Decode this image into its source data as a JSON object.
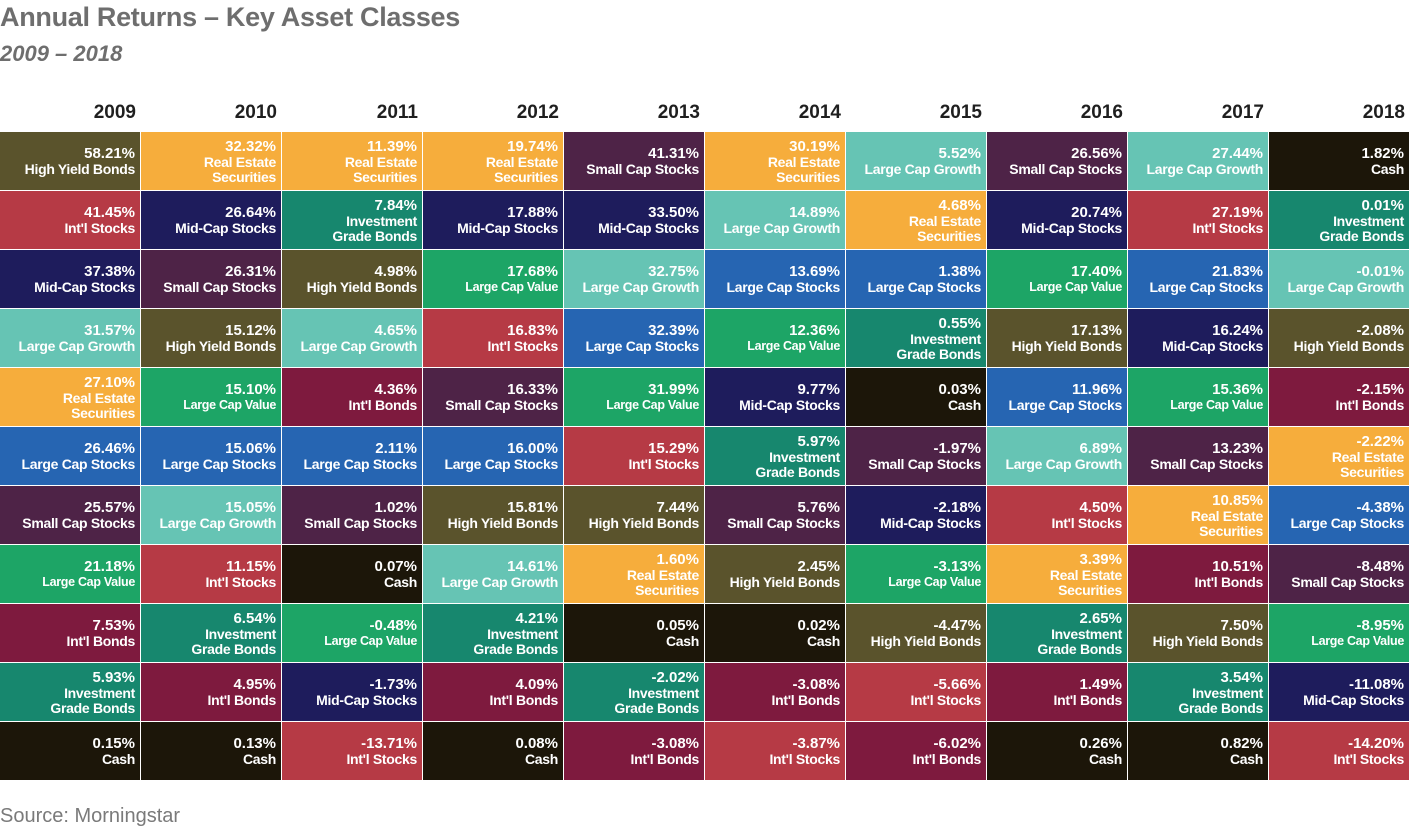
{
  "title": "Annual Returns – Key Asset Classes",
  "subtitle": "2009 – 2018",
  "source": "Source: Morningstar",
  "asset_colors": {
    "High Yield Bonds": "#5a532c",
    "Real Estate Securities": "#f6ad3c",
    "Small Cap Stocks": "#4e2347",
    "Large Cap Growth": "#66c4b4",
    "Cash": "#1c1609",
    "Int'l Stocks": "#b63a45",
    "Mid-Cap Stocks": "#1e1c5c",
    "Investment Grade Bonds": "#17876e",
    "Large Cap Stocks": "#2665b2",
    "Large Cap Value": "#1da566",
    "Int'l Bonds": "#7e1a3e"
  },
  "chart_data": {
    "type": "table",
    "title": "Annual Returns – Key Asset Classes",
    "subtitle": "2009 – 2018",
    "years": [
      "2009",
      "2010",
      "2011",
      "2012",
      "2013",
      "2014",
      "2015",
      "2016",
      "2017",
      "2018"
    ],
    "columns": [
      [
        {
          "value": "58.21%",
          "label": "High Yield Bonds",
          "asset": "High Yield Bonds"
        },
        {
          "value": "41.45%",
          "label": "Int'l Stocks",
          "asset": "Int'l Stocks"
        },
        {
          "value": "37.38%",
          "label": "Mid-Cap Stocks",
          "asset": "Mid-Cap Stocks"
        },
        {
          "value": "31.57%",
          "label": "Large Cap Growth",
          "asset": "Large Cap Growth"
        },
        {
          "value": "27.10%",
          "label": "Real Estate\nSecurities",
          "asset": "Real Estate Securities"
        },
        {
          "value": "26.46%",
          "label": "Large Cap Stocks",
          "asset": "Large Cap Stocks"
        },
        {
          "value": "25.57%",
          "label": "Small Cap Stocks",
          "asset": "Small Cap Stocks"
        },
        {
          "value": "21.18%",
          "label": "Large Cap Value",
          "asset": "Large Cap Value"
        },
        {
          "value": "7.53%",
          "label": "Int'l Bonds",
          "asset": "Int'l Bonds"
        },
        {
          "value": "5.93%",
          "label": "Investment\nGrade  Bonds",
          "asset": "Investment Grade Bonds"
        },
        {
          "value": "0.15%",
          "label": "Cash",
          "asset": "Cash"
        }
      ],
      [
        {
          "value": "32.32%",
          "label": "Real Estate\nSecurities",
          "asset": "Real Estate Securities"
        },
        {
          "value": "26.64%",
          "label": "Mid-Cap Stocks",
          "asset": "Mid-Cap Stocks"
        },
        {
          "value": "26.31%",
          "label": "Small Cap Stocks",
          "asset": "Small Cap Stocks"
        },
        {
          "value": "15.12%",
          "label": "High Yield Bonds",
          "asset": "High Yield Bonds"
        },
        {
          "value": "15.10%",
          "label": "Large Cap Value",
          "asset": "Large Cap Value"
        },
        {
          "value": "15.06%",
          "label": "Large Cap Stocks",
          "asset": "Large Cap Stocks"
        },
        {
          "value": "15.05%",
          "label": "Large Cap Growth",
          "asset": "Large Cap Growth"
        },
        {
          "value": "11.15%",
          "label": "Int'l Stocks",
          "asset": "Int'l Stocks"
        },
        {
          "value": "6.54%",
          "label": "Investment\nGrade Bonds",
          "asset": "Investment Grade Bonds"
        },
        {
          "value": "4.95%",
          "label": "Int'l Bonds",
          "asset": "Int'l Bonds"
        },
        {
          "value": "0.13%",
          "label": "Cash",
          "asset": "Cash"
        }
      ],
      [
        {
          "value": "11.39%",
          "label": "Real Estate\nSecurities",
          "asset": "Real Estate Securities"
        },
        {
          "value": "7.84%",
          "label": "Investment\nGrade Bonds",
          "asset": "Investment Grade Bonds"
        },
        {
          "value": "4.98%",
          "label": "High Yield Bonds",
          "asset": "High Yield Bonds"
        },
        {
          "value": "4.65%",
          "label": "Large Cap Growth",
          "asset": "Large Cap Growth"
        },
        {
          "value": "4.36%",
          "label": "Int'l Bonds",
          "asset": "Int'l Bonds"
        },
        {
          "value": "2.11%",
          "label": "Large Cap Stocks",
          "asset": "Large Cap Stocks"
        },
        {
          "value": "1.02%",
          "label": "Small Cap Stocks",
          "asset": "Small Cap Stocks"
        },
        {
          "value": "0.07%",
          "label": "Cash",
          "asset": "Cash"
        },
        {
          "value": "-0.48%",
          "label": "Large Cap Value",
          "asset": "Large Cap Value"
        },
        {
          "value": "-1.73%",
          "label": "Mid-Cap Stocks",
          "asset": "Mid-Cap Stocks"
        },
        {
          "value": "-13.71%",
          "label": "Int'l Stocks",
          "asset": "Int'l Stocks"
        }
      ],
      [
        {
          "value": "19.74%",
          "label": "Real Estate\nSecurities",
          "asset": "Real Estate Securities"
        },
        {
          "value": "17.88%",
          "label": "Mid-Cap Stocks",
          "asset": "Mid-Cap Stocks"
        },
        {
          "value": "17.68%",
          "label": "Large Cap Value",
          "asset": "Large Cap Value"
        },
        {
          "value": "16.83%",
          "label": "Int'l Stocks",
          "asset": "Int'l Stocks"
        },
        {
          "value": "16.33%",
          "label": "Small Cap Stocks",
          "asset": "Small Cap Stocks"
        },
        {
          "value": "16.00%",
          "label": "Large Cap Stocks",
          "asset": "Large Cap Stocks"
        },
        {
          "value": "15.81%",
          "label": "High Yield Bonds",
          "asset": "High Yield Bonds"
        },
        {
          "value": "14.61%",
          "label": "Large Cap Growth",
          "asset": "Large Cap Growth"
        },
        {
          "value": "4.21%",
          "label": "Investment\nGrade Bonds",
          "asset": "Investment Grade Bonds"
        },
        {
          "value": "4.09%",
          "label": "Int'l Bonds",
          "asset": "Int'l Bonds"
        },
        {
          "value": "0.08%",
          "label": "Cash",
          "asset": "Cash"
        }
      ],
      [
        {
          "value": "41.31%",
          "label": "Small Cap Stocks",
          "asset": "Small Cap Stocks"
        },
        {
          "value": "33.50%",
          "label": "Mid-Cap Stocks",
          "asset": "Mid-Cap Stocks"
        },
        {
          "value": "32.75%",
          "label": "Large Cap Growth",
          "asset": "Large Cap Growth"
        },
        {
          "value": "32.39%",
          "label": "Large Cap Stocks",
          "asset": "Large Cap Stocks"
        },
        {
          "value": "31.99%",
          "label": "Large Cap Value",
          "asset": "Large Cap Value"
        },
        {
          "value": "15.29%",
          "label": "Int'l Stocks",
          "asset": "Int'l Stocks"
        },
        {
          "value": "7.44%",
          "label": "High Yield Bonds",
          "asset": "High Yield Bonds"
        },
        {
          "value": "1.60%",
          "label": "Real Estate\nSecurities",
          "asset": "Real Estate Securities"
        },
        {
          "value": "0.05%",
          "label": "Cash",
          "asset": "Cash"
        },
        {
          "value": "-2.02%",
          "label": "Investment\nGrade Bonds",
          "asset": "Investment Grade Bonds"
        },
        {
          "value": "-3.08%",
          "label": "Int'l Bonds",
          "asset": "Int'l Bonds"
        }
      ],
      [
        {
          "value": "30.19%",
          "label": "Real Estate\nSecurities",
          "asset": "Real Estate Securities"
        },
        {
          "value": "14.89%",
          "label": "Large Cap Growth",
          "asset": "Large Cap Growth"
        },
        {
          "value": "13.69%",
          "label": "Large Cap Stocks",
          "asset": "Large Cap Stocks"
        },
        {
          "value": "12.36%",
          "label": "Large Cap Value",
          "asset": "Large Cap Value"
        },
        {
          "value": "9.77%",
          "label": "Mid-Cap Stocks",
          "asset": "Mid-Cap Stocks"
        },
        {
          "value": "5.97%",
          "label": "Investment\nGrade Bonds",
          "asset": "Investment Grade Bonds"
        },
        {
          "value": "5.76%",
          "label": "Small Cap Stocks",
          "asset": "Small Cap Stocks"
        },
        {
          "value": "2.45%",
          "label": "High Yield Bonds",
          "asset": "High Yield Bonds"
        },
        {
          "value": "0.02%",
          "label": "Cash",
          "asset": "Cash"
        },
        {
          "value": "-3.08%",
          "label": "Int'l Bonds",
          "asset": "Int'l Bonds"
        },
        {
          "value": "-3.87%",
          "label": "Int'l Stocks",
          "asset": "Int'l Stocks"
        }
      ],
      [
        {
          "value": "5.52%",
          "label": "Large Cap Growth",
          "asset": "Large Cap Growth"
        },
        {
          "value": "4.68%",
          "label": "Real Estate\nSecurities",
          "asset": "Real Estate Securities"
        },
        {
          "value": "1.38%",
          "label": "Large Cap Stocks",
          "asset": "Large Cap Stocks"
        },
        {
          "value": "0.55%",
          "label": "Investment\nGrade Bonds",
          "asset": "Investment Grade Bonds"
        },
        {
          "value": "0.03%",
          "label": "Cash",
          "asset": "Cash"
        },
        {
          "value": "-1.97%",
          "label": "Small Cap Stocks",
          "asset": "Small Cap Stocks"
        },
        {
          "value": "-2.18%",
          "label": "Mid-Cap Stocks",
          "asset": "Mid-Cap Stocks"
        },
        {
          "value": "-3.13%",
          "label": "Large Cap Value",
          "asset": "Large Cap Value"
        },
        {
          "value": "-4.47%",
          "label": "High Yield Bonds",
          "asset": "High Yield Bonds"
        },
        {
          "value": "-5.66%",
          "label": "Int'l Stocks",
          "asset": "Int'l Stocks"
        },
        {
          "value": "-6.02%",
          "label": "Int'l Bonds",
          "asset": "Int'l Bonds"
        }
      ],
      [
        {
          "value": "26.56%",
          "label": "Small Cap Stocks",
          "asset": "Small Cap Stocks"
        },
        {
          "value": "20.74%",
          "label": "Mid-Cap Stocks",
          "asset": "Mid-Cap Stocks"
        },
        {
          "value": "17.40%",
          "label": "Large Cap Value",
          "asset": "Large Cap Value"
        },
        {
          "value": "17.13%",
          "label": "High Yield Bonds",
          "asset": "High Yield Bonds"
        },
        {
          "value": "11.96%",
          "label": "Large Cap Stocks",
          "asset": "Large Cap Stocks"
        },
        {
          "value": "6.89%",
          "label": "Large Cap Growth",
          "asset": "Large Cap Growth"
        },
        {
          "value": "4.50%",
          "label": "Int'l Stocks",
          "asset": "Int'l Stocks"
        },
        {
          "value": "3.39%",
          "label": "Real Estate\nSecurities",
          "asset": "Real Estate Securities"
        },
        {
          "value": "2.65%",
          "label": "Investment\nGrade Bonds",
          "asset": "Investment Grade Bonds"
        },
        {
          "value": "1.49%",
          "label": "Int'l Bonds",
          "asset": "Int'l Bonds"
        },
        {
          "value": "0.26%",
          "label": "Cash",
          "asset": "Cash"
        }
      ],
      [
        {
          "value": "27.44%",
          "label": "Large Cap Growth",
          "asset": "Large Cap Growth"
        },
        {
          "value": "27.19%",
          "label": "Int'l Stocks",
          "asset": "Int'l Stocks"
        },
        {
          "value": "21.83%",
          "label": "Large Cap Stocks",
          "asset": "Large Cap Stocks"
        },
        {
          "value": "16.24%",
          "label": "Mid-Cap Stocks",
          "asset": "Mid-Cap Stocks"
        },
        {
          "value": "15.36%",
          "label": "Large Cap Value",
          "asset": "Large Cap Value"
        },
        {
          "value": "13.23%",
          "label": "Small Cap Stocks",
          "asset": "Small Cap Stocks"
        },
        {
          "value": "10.85%",
          "label": "Real Estate\nSecurities",
          "asset": "Real Estate Securities"
        },
        {
          "value": "10.51%",
          "label": "Int'l Bonds",
          "asset": "Int'l Bonds"
        },
        {
          "value": "7.50%",
          "label": "High Yield Bonds",
          "asset": "High Yield Bonds"
        },
        {
          "value": "3.54%",
          "label": "Investment\nGrade Bonds",
          "asset": "Investment Grade Bonds"
        },
        {
          "value": "0.82%",
          "label": "Cash",
          "asset": "Cash"
        }
      ],
      [
        {
          "value": "1.82%",
          "label": "Cash",
          "asset": "Cash"
        },
        {
          "value": "0.01%",
          "label": "Investment\nGrade Bonds",
          "asset": "Investment Grade Bonds"
        },
        {
          "value": "-0.01%",
          "label": "Large Cap Growth",
          "asset": "Large Cap Growth"
        },
        {
          "value": "-2.08%",
          "label": "High Yield Bonds",
          "asset": "High Yield Bonds"
        },
        {
          "value": "-2.15%",
          "label": "Int'l Bonds",
          "asset": "Int'l Bonds"
        },
        {
          "value": "-2.22%",
          "label": "Real Estate\nSecurities",
          "asset": "Real Estate Securities"
        },
        {
          "value": "-4.38%",
          "label": "Large Cap Stocks",
          "asset": "Large Cap Stocks"
        },
        {
          "value": "-8.48%",
          "label": "Small Cap Stocks",
          "asset": "Small Cap Stocks"
        },
        {
          "value": "-8.95%",
          "label": "Large Cap Value",
          "asset": "Large Cap Value"
        },
        {
          "value": "-11.08%",
          "label": "Mid-Cap Stocks",
          "asset": "Mid-Cap Stocks"
        },
        {
          "value": "-14.20%",
          "label": "Int'l Stocks",
          "asset": "Int'l Stocks"
        }
      ]
    ]
  }
}
